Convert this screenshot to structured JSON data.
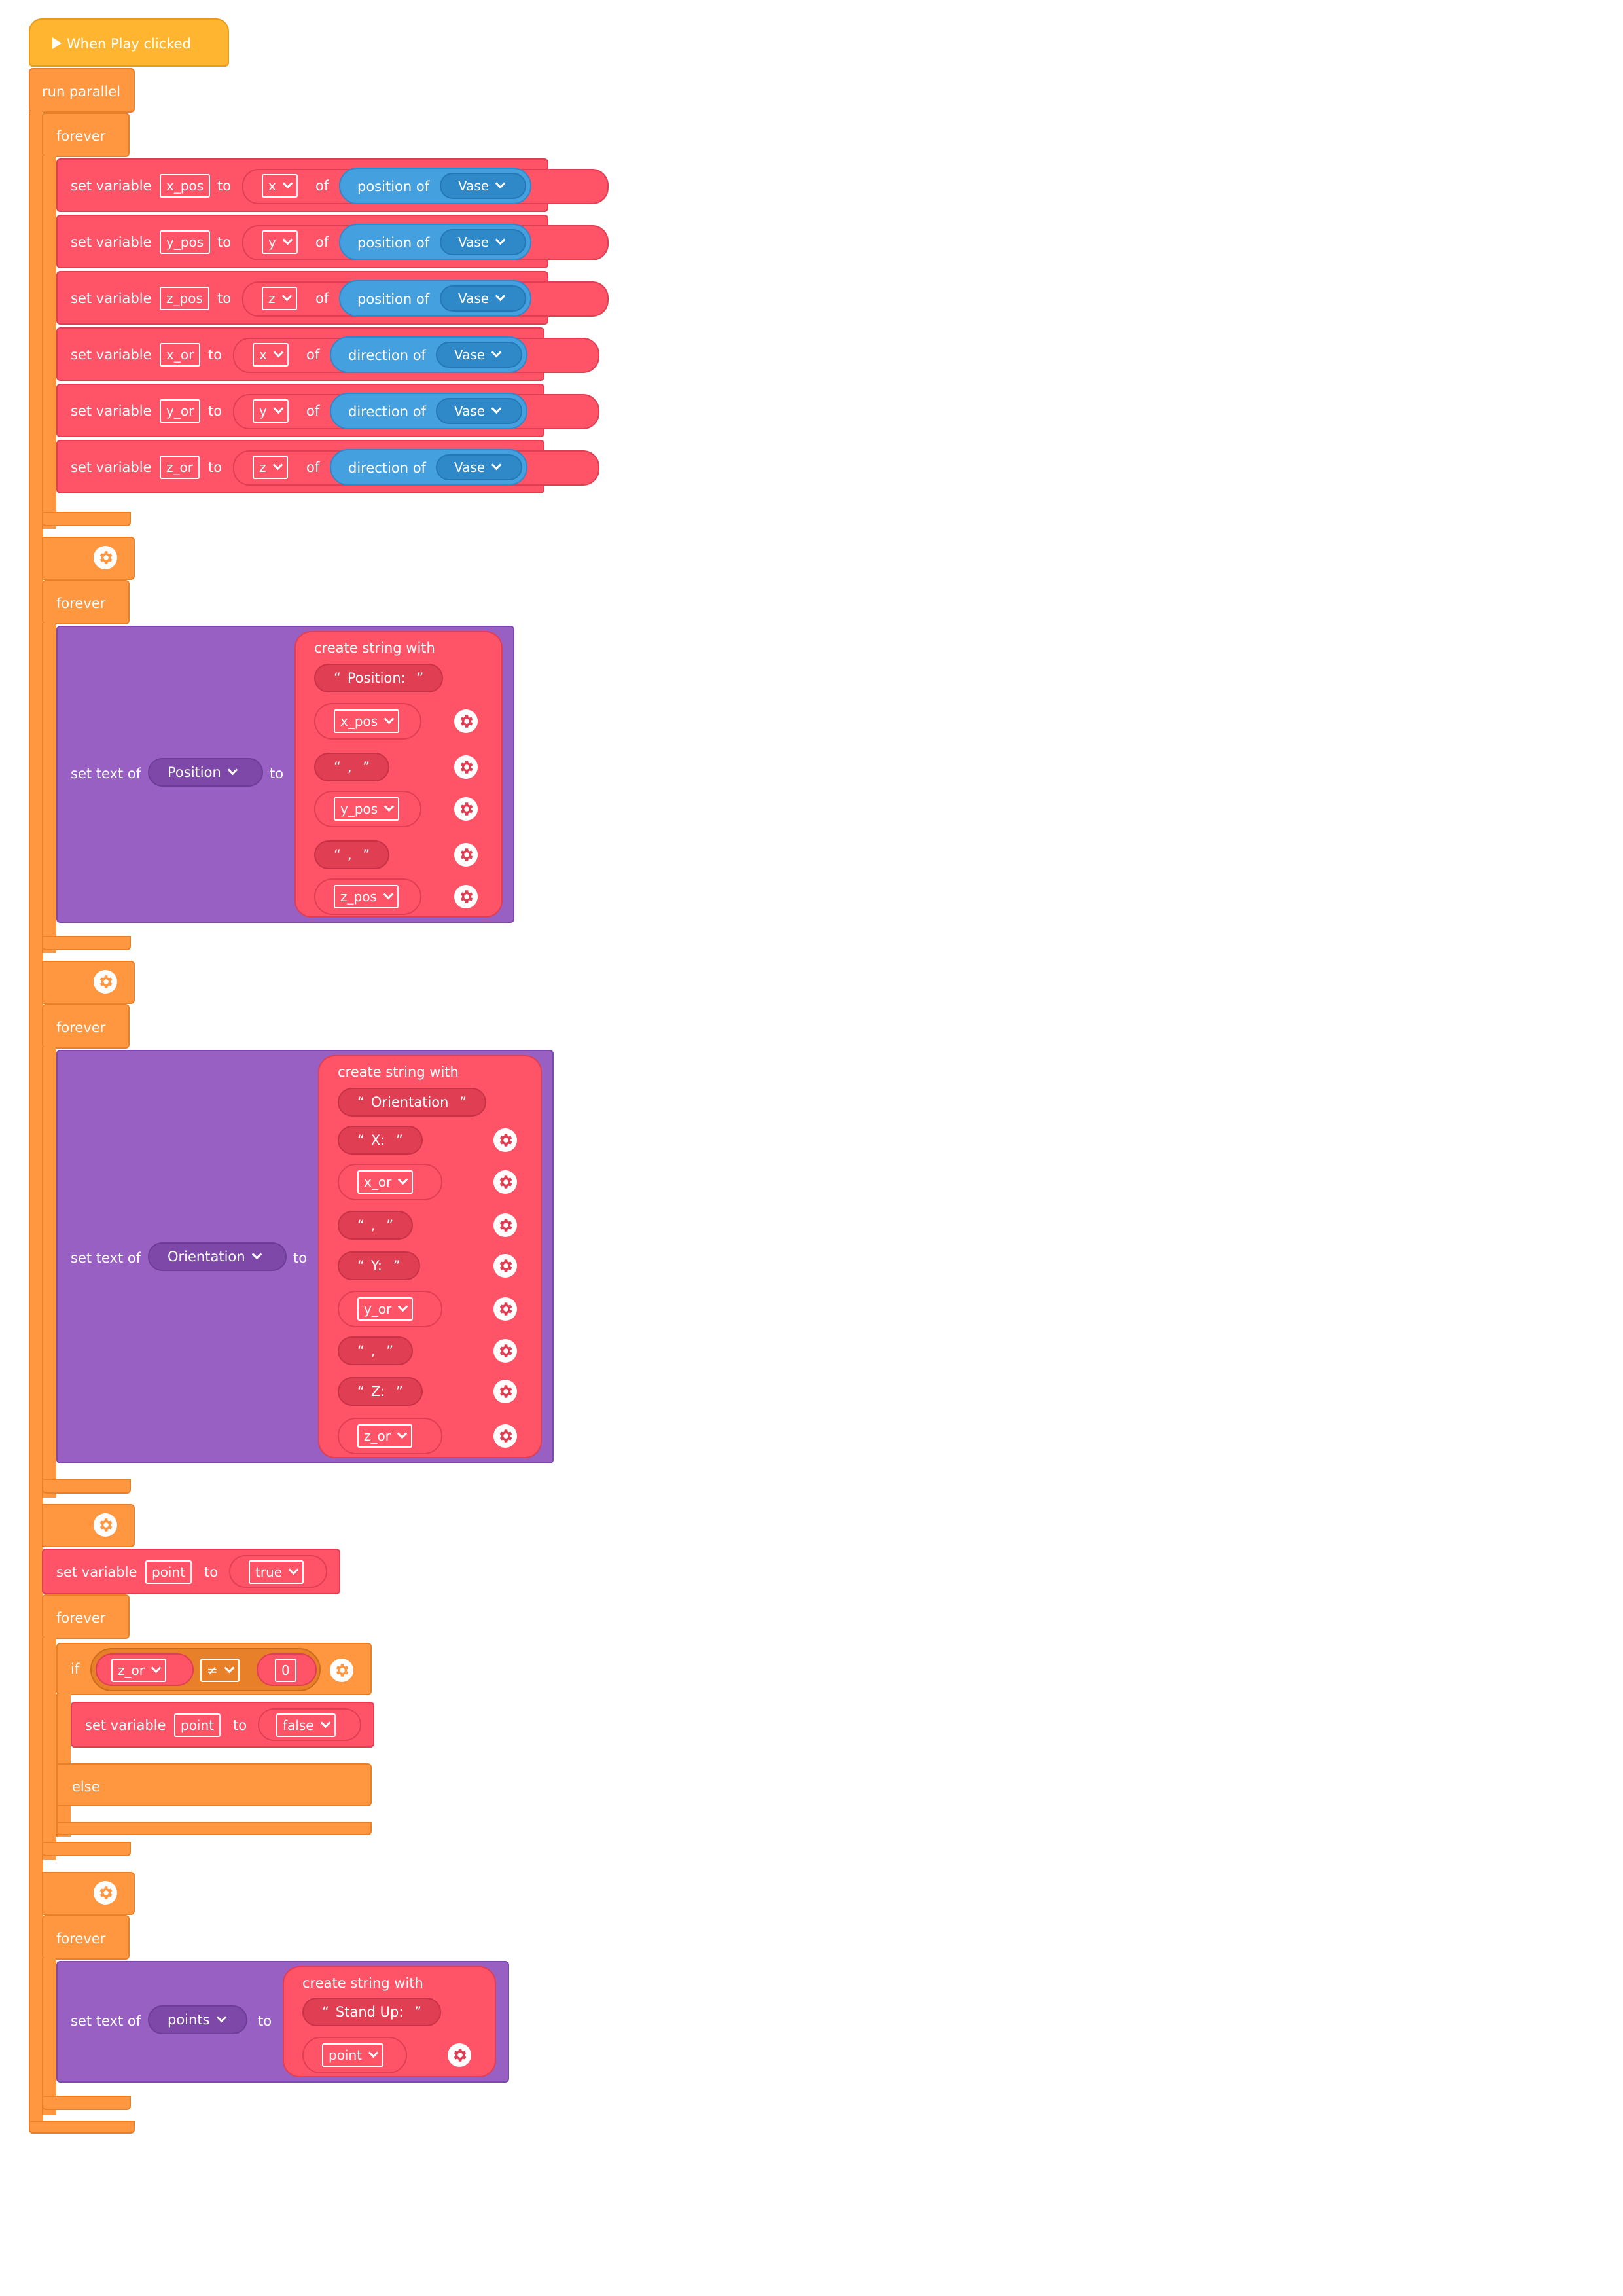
{
  "hat": {
    "label": "When Play clicked"
  },
  "run_parallel": {
    "label": "run parallel"
  },
  "forever_label": "forever",
  "block1": {
    "rows": [
      {
        "prefix": "set variable",
        "var": "x_pos",
        "to": "to",
        "axis": "x",
        "of": "of",
        "func": "position of",
        "object": "Vase"
      },
      {
        "prefix": "set variable",
        "var": "y_pos",
        "to": "to",
        "axis": "y",
        "of": "of",
        "func": "position of",
        "object": "Vase"
      },
      {
        "prefix": "set variable",
        "var": "z_pos",
        "to": "to",
        "axis": "z",
        "of": "of",
        "func": "position of",
        "object": "Vase"
      },
      {
        "prefix": "set variable",
        "var": "x_or",
        "to": "to",
        "axis": "x",
        "of": "of",
        "func": "direction of",
        "object": "Vase"
      },
      {
        "prefix": "set variable",
        "var": "y_or",
        "to": "to",
        "axis": "y",
        "of": "of",
        "func": "direction of",
        "object": "Vase"
      },
      {
        "prefix": "set variable",
        "var": "z_or",
        "to": "to",
        "axis": "z",
        "of": "of",
        "func": "direction of",
        "object": "Vase"
      }
    ]
  },
  "block2": {
    "prefix": "set text of",
    "target": "Position",
    "to": "to",
    "create": "create string with",
    "items": [
      {
        "kind": "str",
        "value": "Position: "
      },
      {
        "kind": "var",
        "value": "x_pos"
      },
      {
        "kind": "str",
        "value": ", "
      },
      {
        "kind": "var",
        "value": "y_pos"
      },
      {
        "kind": "str",
        "value": ", "
      },
      {
        "kind": "var",
        "value": "z_pos"
      }
    ]
  },
  "block3": {
    "prefix": "set text of",
    "target": "Orientation",
    "to": "to",
    "create": "create string with",
    "items": [
      {
        "kind": "str",
        "value": "Orientation "
      },
      {
        "kind": "str",
        "value": "X: "
      },
      {
        "kind": "var",
        "value": "x_or"
      },
      {
        "kind": "str",
        "value": ", "
      },
      {
        "kind": "str",
        "value": "Y: "
      },
      {
        "kind": "var",
        "value": "y_or"
      },
      {
        "kind": "str",
        "value": ", "
      },
      {
        "kind": "str",
        "value": "Z: "
      },
      {
        "kind": "var",
        "value": "z_or"
      }
    ]
  },
  "block4": {
    "set_point": {
      "prefix": "set variable",
      "var": "point",
      "to": "to",
      "value": "true"
    },
    "if_label": "if",
    "cond": {
      "left": "z_or",
      "op": "≠",
      "right": "0"
    },
    "then": {
      "prefix": "set variable",
      "var": "point",
      "to": "to",
      "value": "false"
    },
    "else_label": "else"
  },
  "block5": {
    "prefix": "set text of",
    "target": "points",
    "to": "to",
    "create": "create string with",
    "items": [
      {
        "kind": "str",
        "value": "Stand Up: "
      },
      {
        "kind": "var",
        "value": "point"
      }
    ]
  },
  "colors": {
    "hat": "#FFB530",
    "control": "#FF9640",
    "variable": "#FF5468",
    "text": "#9760C2",
    "sensing": "#45A0E0"
  },
  "icons": [
    "play-icon",
    "gear-icon",
    "chevron-down-icon"
  ]
}
